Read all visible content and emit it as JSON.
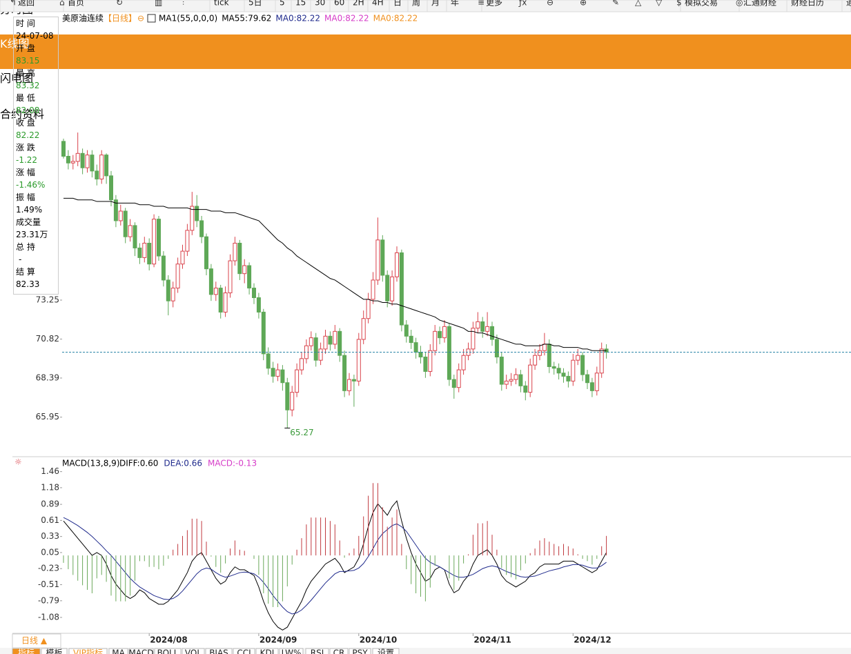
{
  "toolbar": [
    "返回",
    "首页",
    "tick",
    "5日",
    "5",
    "15",
    "30",
    "60",
    "2H",
    "4H",
    "日",
    "周",
    "月",
    "年",
    "更多",
    "模拟交易",
    "汇通财经",
    "财经日历",
    "通"
  ],
  "side_tabs": [
    "分时图",
    "K线图",
    "闪电图",
    "合约资料"
  ],
  "info_panel": {
    "labels": [
      "时 间",
      "开 盘",
      "最 高",
      "最 低",
      "收 盘",
      "涨 跌",
      "涨 幅",
      "振 幅",
      "成交量",
      "总 持",
      "结 算"
    ],
    "time": "24-07-08",
    "change": -1.22,
    "change_pct": "-1.46%",
    "amplitude": "1.49%",
    "volume": "23.31万",
    "position": "-",
    "settle": 82.33
  },
  "bottom_tab": "日线 ▲",
  "indicator_tabs": [
    "指标",
    "模板",
    "VIP指标",
    "MA",
    "MACD",
    "BOLL",
    "VOL",
    "BIAS",
    "CCI",
    "KDJ",
    "LW%",
    "RSI",
    "CR",
    "PSY",
    "设置"
  ],
  "chart_data": [
    {
      "type": "candlestick",
      "title": "美原油连续",
      "period": "【日线】",
      "legend": [
        {
          "text": "MA1(55,0,0,0)",
          "color": "#000000"
        },
        {
          "text": "MA55:79.62",
          "color": "#000000"
        },
        {
          "text": "MA0:82.22",
          "color": "#1f2a8c"
        },
        {
          "text": "MA0:82.22",
          "color": "#d63cc8"
        },
        {
          "text": "MA0:82.22",
          "color": "#f0901e"
        }
      ],
      "up_color": "#d9414a",
      "down_color": "#5ea857",
      "ma_color": "#000000",
      "last_color": "#2a86a8",
      "ylim": [
        63.57,
        90.33
      ],
      "yticks": [
        73.25,
        70.82,
        68.39,
        65.95
      ],
      "xticks": [
        {
          "value": 18,
          "label": "2024/08"
        },
        {
          "value": 41,
          "label": "2024/09"
        },
        {
          "value": 62,
          "label": "2024/10"
        },
        {
          "value": 86,
          "label": "2024/11"
        },
        {
          "value": 107,
          "label": "2024/12"
        }
      ],
      "open": [
        83.15,
        82.22,
        81.8,
        81.9,
        82.4,
        81.5,
        82.3,
        81.3,
        80.8,
        82.3,
        81.0,
        79.5,
        78.2,
        78.8,
        77.2,
        77.9,
        76.5,
        75.9,
        76.8,
        75.5,
        78.3,
        76.0,
        74.5,
        73.2,
        74.0,
        75.5,
        76.3,
        77.6,
        79.1,
        78.2,
        77.2,
        75.2,
        73.6,
        74.0,
        72.5,
        73.7,
        75.7,
        76.8,
        74.9,
        75.4,
        74.0,
        73.4,
        72.5,
        69.9,
        69.0,
        68.5,
        68.9,
        68.1,
        66.4,
        67.5,
        68.9,
        69.6,
        70.4,
        70.9,
        69.5,
        70.2,
        71.0,
        70.5,
        71.3,
        69.8,
        67.6,
        68.3,
        68.2,
        70.8,
        72.1,
        73.3,
        74.5,
        77.0,
        74.8,
        73.2,
        74.7,
        76.2,
        71.7,
        71.0,
        70.6,
        70.0,
        69.7,
        68.8,
        70.1,
        71.3,
        70.9,
        71.6,
        68.3,
        67.8,
        68.9,
        69.8,
        70.2,
        71.5,
        71.9,
        71.3,
        71.6,
        70.8,
        69.7,
        68.0,
        68.2,
        68.3,
        68.6,
        67.9,
        67.5,
        69.2,
        69.8,
        70.1,
        70.5,
        69.1,
        69.0,
        68.7,
        68.5,
        68.2,
        69.5,
        69.8,
        68.6,
        68.1,
        67.6,
        68.7,
        70.2
      ],
      "high": [
        83.32,
        82.6,
        82.3,
        83.7,
        82.7,
        82.6,
        82.6,
        81.7,
        82.6,
        82.4,
        81.3,
        79.8,
        79.2,
        79.0,
        78.3,
        78.1,
        76.8,
        77.2,
        77.1,
        78.6,
        78.5,
        76.3,
        74.8,
        74.4,
        75.9,
        76.7,
        78.0,
        80.0,
        79.8,
        78.5,
        77.4,
        75.5,
        74.4,
        74.2,
        74.1,
        76.1,
        77.2,
        77.0,
        75.8,
        75.6,
        74.3,
        73.7,
        72.7,
        70.3,
        69.4,
        69.3,
        69.2,
        68.4,
        67.9,
        69.3,
        70.0,
        70.8,
        71.3,
        71.2,
        70.6,
        71.4,
        71.3,
        71.7,
        71.5,
        70.1,
        68.7,
        68.6,
        71.2,
        72.6,
        73.7,
        75.0,
        78.4,
        77.3,
        75.1,
        75.1,
        76.6,
        76.4,
        72.0,
        71.4,
        70.9,
        70.4,
        70.0,
        70.5,
        71.7,
        71.6,
        72.0,
        71.8,
        68.6,
        69.3,
        70.2,
        70.6,
        71.9,
        72.5,
        72.2,
        72.5,
        71.9,
        71.1,
        70.0,
        68.6,
        68.7,
        69.0,
        68.9,
        68.2,
        69.6,
        70.2,
        70.5,
        71.2,
        70.8,
        69.4,
        69.3,
        69.0,
        68.8,
        69.9,
        70.2,
        70.0,
        68.9,
        68.4,
        69.1,
        70.6,
        70.5
      ],
      "low": [
        82.08,
        81.4,
        81.4,
        81.6,
        81.1,
        81.2,
        80.9,
        80.4,
        80.5,
        80.5,
        79.1,
        77.8,
        77.9,
        76.8,
        76.9,
        76.0,
        75.5,
        75.6,
        75.1,
        75.3,
        75.7,
        74.1,
        72.3,
        72.8,
        73.7,
        75.2,
        76.0,
        77.3,
        77.8,
        76.8,
        74.8,
        73.2,
        73.2,
        72.1,
        72.2,
        73.4,
        75.4,
        74.5,
        74.3,
        73.6,
        73.0,
        72.1,
        69.5,
        68.6,
        68.1,
        68.2,
        67.6,
        65.27,
        66.0,
        67.2,
        68.6,
        69.3,
        70.1,
        69.1,
        69.2,
        69.9,
        70.1,
        70.2,
        69.4,
        67.2,
        67.3,
        66.6,
        67.9,
        70.5,
        71.8,
        73.0,
        74.2,
        74.4,
        72.8,
        72.9,
        74.4,
        71.3,
        70.6,
        70.2,
        69.6,
        69.3,
        68.4,
        68.5,
        69.8,
        70.5,
        70.6,
        67.9,
        67.1,
        67.5,
        68.6,
        69.5,
        69.9,
        71.2,
        70.9,
        71.0,
        70.4,
        69.3,
        67.6,
        67.7,
        67.9,
        68.0,
        67.5,
        67.0,
        67.2,
        68.9,
        69.5,
        69.8,
        68.7,
        68.6,
        68.3,
        68.1,
        67.8,
        67.9,
        69.2,
        68.2,
        67.7,
        67.2,
        67.3,
        68.4,
        69.6
      ],
      "close": [
        82.22,
        81.8,
        81.9,
        82.4,
        81.5,
        82.3,
        81.3,
        80.8,
        82.3,
        81.0,
        79.5,
        78.2,
        78.8,
        77.2,
        77.9,
        76.5,
        75.9,
        76.8,
        75.5,
        78.3,
        76.0,
        74.5,
        73.2,
        74.0,
        75.5,
        76.3,
        77.6,
        79.1,
        78.2,
        77.2,
        75.2,
        73.6,
        74.0,
        72.5,
        73.7,
        75.7,
        76.8,
        74.9,
        75.4,
        74.0,
        73.4,
        72.5,
        69.9,
        69.0,
        68.5,
        68.9,
        68.1,
        66.4,
        67.5,
        68.9,
        69.6,
        70.4,
        70.9,
        69.5,
        70.2,
        71.0,
        70.5,
        71.3,
        69.8,
        67.6,
        68.3,
        68.2,
        70.8,
        72.1,
        73.3,
        74.5,
        77.0,
        74.8,
        73.2,
        74.7,
        76.2,
        71.7,
        71.0,
        70.6,
        70.0,
        69.7,
        68.8,
        70.1,
        71.3,
        70.9,
        71.6,
        68.3,
        67.8,
        68.9,
        69.8,
        70.2,
        71.5,
        71.9,
        71.3,
        71.6,
        70.8,
        69.7,
        68.0,
        68.2,
        68.3,
        68.6,
        67.9,
        67.5,
        69.2,
        69.8,
        70.1,
        70.5,
        69.1,
        69.0,
        68.7,
        68.5,
        68.2,
        69.5,
        69.8,
        68.6,
        68.1,
        67.6,
        68.7,
        70.2,
        70.0
      ],
      "ma55": [
        79.6,
        79.6,
        79.6,
        79.5,
        79.5,
        79.5,
        79.5,
        79.4,
        79.4,
        79.4,
        79.4,
        79.3,
        79.3,
        79.3,
        79.3,
        79.3,
        79.2,
        79.2,
        79.2,
        79.1,
        79.1,
        79.1,
        79.0,
        79.0,
        79.0,
        79.0,
        79.0,
        78.9,
        78.9,
        78.9,
        78.9,
        78.8,
        78.8,
        78.8,
        78.7,
        78.7,
        78.7,
        78.6,
        78.5,
        78.4,
        78.3,
        78.2,
        77.9,
        77.6,
        77.3,
        77.0,
        76.8,
        76.5,
        76.3,
        76.0,
        75.8,
        75.6,
        75.4,
        75.2,
        75.0,
        74.8,
        74.6,
        74.5,
        74.3,
        74.1,
        73.9,
        73.7,
        73.5,
        73.3,
        73.3,
        73.2,
        73.2,
        73.1,
        73.1,
        73.0,
        73.0,
        72.9,
        72.8,
        72.7,
        72.6,
        72.5,
        72.4,
        72.3,
        72.2,
        72.0,
        71.9,
        71.8,
        71.7,
        71.6,
        71.5,
        71.3,
        71.3,
        71.2,
        71.2,
        71.1,
        71.0,
        70.9,
        70.8,
        70.7,
        70.6,
        70.5,
        70.5,
        70.4,
        70.4,
        70.4,
        70.4,
        70.5,
        70.5,
        70.4,
        70.4,
        70.3,
        70.3,
        70.3,
        70.3,
        70.2,
        70.2,
        70.1,
        70.1,
        70.1,
        70.1
      ]
    },
    {
      "type": "macd",
      "title": "MACD(13,8,9)",
      "legend": [
        {
          "text": "DIFF:0.60",
          "color": "#000000"
        },
        {
          "text": "DEA:0.66",
          "color": "#1f2a8c"
        },
        {
          "text": "MACD:-0.13",
          "color": "#d63cc8"
        }
      ],
      "ylim": [
        -1.345,
        1.66
      ],
      "yticks": [
        1.46,
        1.18,
        0.89,
        0.61,
        0.33,
        0.05,
        -0.23,
        -0.51,
        -0.79,
        -1.08
      ],
      "up_color": "#c0393f",
      "down_color": "#6aa85a",
      "series": [
        {
          "color": "#000000",
          "values": [
            0.6,
            0.5,
            0.4,
            0.3,
            0.2,
            0.1,
            0.0,
            0.05,
            0.0,
            -0.15,
            -0.35,
            -0.5,
            -0.6,
            -0.7,
            -0.75,
            -0.7,
            -0.6,
            -0.65,
            -0.75,
            -0.8,
            -0.85,
            -0.85,
            -0.8,
            -0.7,
            -0.6,
            -0.45,
            -0.3,
            -0.1,
            0.0,
            0.05,
            -0.1,
            -0.25,
            -0.4,
            -0.5,
            -0.45,
            -0.3,
            -0.2,
            -0.25,
            -0.25,
            -0.3,
            -0.35,
            -0.55,
            -0.8,
            -1.0,
            -1.15,
            -1.25,
            -1.3,
            -1.25,
            -1.1,
            -0.95,
            -0.8,
            -0.6,
            -0.45,
            -0.35,
            -0.25,
            -0.15,
            -0.1,
            -0.05,
            -0.15,
            -0.3,
            -0.25,
            -0.2,
            -0.05,
            0.2,
            0.5,
            0.75,
            0.9,
            0.8,
            0.7,
            0.85,
            0.95,
            0.6,
            0.3,
            0.05,
            -0.15,
            -0.3,
            -0.45,
            -0.4,
            -0.25,
            -0.2,
            -0.25,
            -0.5,
            -0.65,
            -0.6,
            -0.45,
            -0.35,
            -0.15,
            0.0,
            0.05,
            0.1,
            0.0,
            -0.15,
            -0.35,
            -0.45,
            -0.5,
            -0.55,
            -0.5,
            -0.45,
            -0.35,
            -0.3,
            -0.2,
            -0.15,
            -0.15,
            -0.15,
            -0.15,
            -0.1,
            -0.1,
            -0.1,
            -0.15,
            -0.2,
            -0.25,
            -0.3,
            -0.25,
            -0.1,
            0.05
          ]
        },
        {
          "color": "#1f2a8c",
          "values": [
            0.66,
            0.62,
            0.57,
            0.52,
            0.46,
            0.4,
            0.33,
            0.25,
            0.17,
            0.08,
            0.0,
            -0.1,
            -0.2,
            -0.3,
            -0.4,
            -0.48,
            -0.55,
            -0.6,
            -0.65,
            -0.7,
            -0.73,
            -0.76,
            -0.77,
            -0.75,
            -0.7,
            -0.62,
            -0.52,
            -0.42,
            -0.32,
            -0.25,
            -0.22,
            -0.24,
            -0.3,
            -0.35,
            -0.38,
            -0.36,
            -0.33,
            -0.3,
            -0.29,
            -0.3,
            -0.32,
            -0.38,
            -0.47,
            -0.58,
            -0.7,
            -0.8,
            -0.9,
            -0.98,
            -1.02,
            -1.0,
            -0.95,
            -0.87,
            -0.78,
            -0.68,
            -0.58,
            -0.48,
            -0.4,
            -0.32,
            -0.28,
            -0.28,
            -0.27,
            -0.26,
            -0.22,
            -0.14,
            -0.02,
            0.12,
            0.27,
            0.38,
            0.45,
            0.52,
            0.55,
            0.5,
            0.42,
            0.3,
            0.18,
            0.06,
            -0.05,
            -0.12,
            -0.16,
            -0.2,
            -0.25,
            -0.3,
            -0.35,
            -0.38,
            -0.38,
            -0.36,
            -0.33,
            -0.28,
            -0.23,
            -0.2,
            -0.18,
            -0.2,
            -0.24,
            -0.28,
            -0.31,
            -0.34,
            -0.37,
            -0.38,
            -0.37,
            -0.36,
            -0.33,
            -0.3,
            -0.27,
            -0.25,
            -0.23,
            -0.2,
            -0.18,
            -0.16,
            -0.16,
            -0.17,
            -0.2,
            -0.22,
            -0.22,
            -0.18,
            -0.12
          ]
        },
        {
          "type": "bar",
          "values": [
            -0.13,
            -0.24,
            -0.34,
            -0.44,
            -0.52,
            -0.6,
            -0.66,
            -0.4,
            -0.34,
            -0.46,
            -0.7,
            -0.8,
            -0.8,
            -0.8,
            -0.7,
            -0.44,
            -0.1,
            -0.1,
            -0.2,
            -0.2,
            -0.24,
            -0.18,
            -0.06,
            0.1,
            0.2,
            0.34,
            0.44,
            0.64,
            0.64,
            0.6,
            0.24,
            -0.02,
            -0.2,
            -0.3,
            -0.14,
            0.12,
            0.26,
            0.1,
            0.08,
            0.0,
            -0.06,
            -0.34,
            -0.66,
            -0.84,
            -0.9,
            -0.9,
            -0.8,
            -0.54,
            -0.16,
            0.1,
            0.3,
            0.54,
            0.66,
            0.66,
            0.66,
            0.66,
            0.6,
            0.54,
            0.26,
            -0.04,
            0.04,
            0.12,
            0.34,
            0.68,
            1.04,
            1.26,
            1.26,
            0.84,
            0.5,
            0.66,
            0.8,
            0.2,
            -0.24,
            -0.5,
            -0.66,
            -0.72,
            -0.8,
            -0.56,
            -0.18,
            0.0,
            0.0,
            -0.4,
            -0.6,
            -0.44,
            -0.14,
            0.02,
            0.36,
            0.56,
            0.56,
            0.6,
            0.36,
            0.1,
            -0.22,
            -0.34,
            -0.38,
            -0.42,
            -0.26,
            -0.14,
            0.04,
            0.12,
            0.26,
            0.3,
            0.24,
            0.2,
            0.16,
            0.2,
            0.16,
            0.12,
            0.02,
            -0.06,
            -0.1,
            -0.16,
            -0.06,
            0.16,
            0.34
          ]
        }
      ]
    }
  ]
}
